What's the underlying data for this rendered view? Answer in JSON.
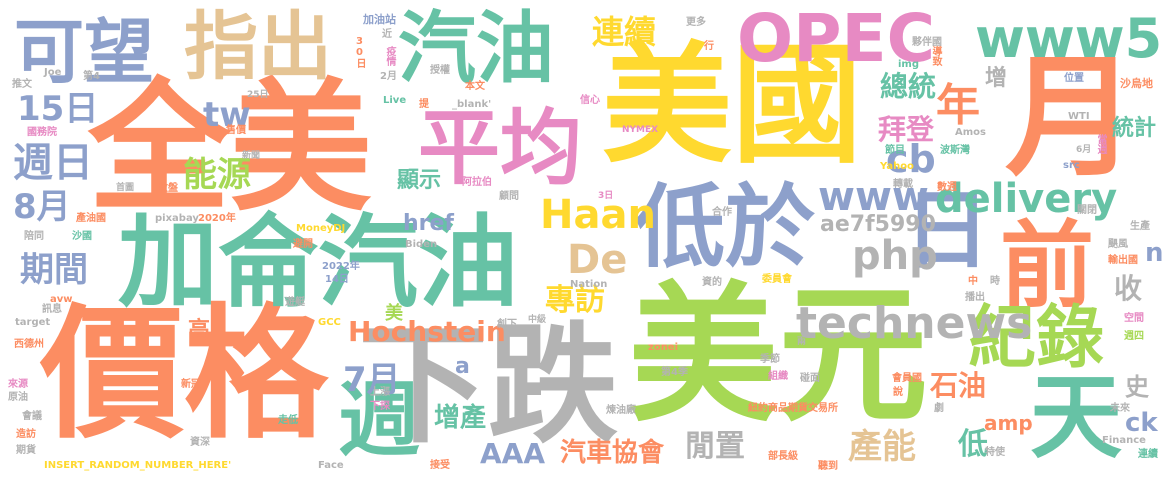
{
  "palette": {
    "teal": "#66c2a5",
    "orange": "#fc8d62",
    "blue": "#8da0cb",
    "pink": "#e78ac3",
    "green": "#a6d854",
    "yellow": "#ffd92f",
    "tan": "#e5c494",
    "gray": "#b3b3b3"
  },
  "words": [
    {
      "text": "美元",
      "color": "green"
    },
    {
      "text": "價格",
      "color": "orange"
    },
    {
      "text": "美國",
      "color": "yellow"
    },
    {
      "text": "全美",
      "color": "orange"
    },
    {
      "text": "加侖汽油",
      "color": "teal"
    },
    {
      "text": "下跌",
      "color": "gray"
    },
    {
      "text": "月",
      "color": "orange"
    },
    {
      "text": "平均",
      "color": "pink"
    },
    {
      "text": "低於",
      "color": "blue"
    },
    {
      "text": "可望",
      "color": "blue"
    },
    {
      "text": "指出",
      "color": "tan"
    },
    {
      "text": "汽油",
      "color": "teal"
    },
    {
      "text": "OPEC",
      "color": "pink"
    },
    {
      "text": "www5",
      "color": "teal"
    },
    {
      "text": "日",
      "color": "blue"
    },
    {
      "text": "前",
      "color": "orange"
    },
    {
      "text": "天",
      "color": "teal"
    },
    {
      "text": "紀錄",
      "color": "green"
    },
    {
      "text": "週",
      "color": "teal"
    },
    {
      "text": "technews",
      "color": "gray"
    },
    {
      "text": "Haan",
      "color": "yellow"
    },
    {
      "text": "www",
      "color": "blue"
    },
    {
      "text": "delivery",
      "color": "teal"
    },
    {
      "text": "php",
      "color": "gray"
    },
    {
      "text": "De",
      "color": "tan"
    },
    {
      "text": "cb",
      "color": "blue"
    },
    {
      "text": "年",
      "color": "orange"
    },
    {
      "text": "15日",
      "color": "blue"
    },
    {
      "text": "週日",
      "color": "blue"
    },
    {
      "text": "8月",
      "color": "blue"
    },
    {
      "text": "tw",
      "color": "blue"
    },
    {
      "text": "能源",
      "color": "green"
    },
    {
      "text": "期間",
      "color": "blue"
    },
    {
      "text": "連續",
      "color": "yellow"
    },
    {
      "text": "總統",
      "color": "teal"
    },
    {
      "text": "拜登",
      "color": "pink"
    },
    {
      "text": "Hochstein",
      "color": "orange"
    },
    {
      "text": "專訪",
      "color": "yellow"
    },
    {
      "text": "7月",
      "color": "blue"
    },
    {
      "text": "石油",
      "color": "orange"
    },
    {
      "text": "ae7f5990",
      "color": "gray"
    },
    {
      "text": "統計",
      "color": "teal"
    },
    {
      "text": "增",
      "color": "gray"
    },
    {
      "text": "顯示",
      "color": "teal"
    },
    {
      "text": "href",
      "color": "blue"
    },
    {
      "text": "收",
      "color": "gray"
    },
    {
      "text": "n",
      "color": "blue"
    },
    {
      "text": "AAA",
      "color": "blue"
    },
    {
      "text": "汽車協會",
      "color": "orange"
    },
    {
      "text": "閒置",
      "color": "gray"
    },
    {
      "text": "產能",
      "color": "tan"
    },
    {
      "text": "低",
      "color": "teal"
    },
    {
      "text": "增產",
      "color": "teal"
    },
    {
      "text": "amp",
      "color": "orange"
    },
    {
      "text": "ck",
      "color": "blue"
    },
    {
      "text": "史",
      "color": "gray"
    },
    {
      "text": "高",
      "color": "orange"
    },
    {
      "text": "a",
      "color": "blue"
    },
    {
      "text": "美",
      "color": "green"
    },
    {
      "text": "加油站",
      "color": "blue"
    },
    {
      "text": "近",
      "color": "gray"
    },
    {
      "text": "30日",
      "color": "orange"
    },
    {
      "text": "疫情",
      "color": "pink"
    },
    {
      "text": "2月",
      "color": "gray"
    },
    {
      "text": "Live",
      "color": "teal"
    },
    {
      "text": "授權",
      "color": "gray"
    },
    {
      "text": "本文",
      "color": "orange"
    },
    {
      "text": "提",
      "color": "orange"
    },
    {
      "text": "_blank'",
      "color": "gray"
    },
    {
      "text": "信心",
      "color": "pink"
    },
    {
      "text": "NYMEX",
      "color": "pink"
    },
    {
      "text": "更多",
      "color": "gray"
    },
    {
      "text": "行",
      "color": "orange"
    },
    {
      "text": "夥伴國",
      "color": "gray"
    },
    {
      "text": "導致",
      "color": "orange"
    },
    {
      "text": "img",
      "color": "teal"
    },
    {
      "text": "位置",
      "color": "blue"
    },
    {
      "text": "沙烏地",
      "color": "orange"
    },
    {
      "text": "WTI",
      "color": "gray"
    },
    {
      "text": "當週",
      "color": "pink"
    },
    {
      "text": "Joe",
      "color": "gray"
    },
    {
      "text": "推文",
      "color": "gray"
    },
    {
      "text": "第4",
      "color": "gray"
    },
    {
      "text": "國務院",
      "color": "pink"
    },
    {
      "text": "25日",
      "color": "gray"
    },
    {
      "text": "售價",
      "color": "orange"
    },
    {
      "text": "新聞",
      "color": "gray"
    },
    {
      "text": "收盤",
      "color": "orange"
    },
    {
      "text": "首圖",
      "color": "gray"
    },
    {
      "text": "產油國",
      "color": "orange"
    },
    {
      "text": "陪同",
      "color": "gray"
    },
    {
      "text": "沙國",
      "color": "teal"
    },
    {
      "text": "pixabay",
      "color": "gray"
    },
    {
      "text": "2020年",
      "color": "orange"
    },
    {
      "text": "MoneyDJ",
      "color": "yellow"
    },
    {
      "text": "阿拉伯",
      "color": "pink"
    },
    {
      "text": "Biden",
      "color": "gray"
    },
    {
      "text": "顧問",
      "color": "gray"
    },
    {
      "text": "3日",
      "color": "pink"
    },
    {
      "text": "合作",
      "color": "gray"
    },
    {
      "text": "Yahoo",
      "color": "yellow"
    },
    {
      "text": "轉載",
      "color": "gray"
    },
    {
      "text": "數週",
      "color": "orange"
    },
    {
      "text": "節目",
      "color": "teal"
    },
    {
      "text": "Amos",
      "color": "gray"
    },
    {
      "text": "波斯灣",
      "color": "teal"
    },
    {
      "text": "6月",
      "color": "gray"
    },
    {
      "text": "src",
      "color": "blue"
    },
    {
      "text": "關閉",
      "color": "gray"
    },
    {
      "text": "生產",
      "color": "gray"
    },
    {
      "text": "颶風",
      "color": "gray"
    },
    {
      "text": "輸出國",
      "color": "orange"
    },
    {
      "text": "避開",
      "color": "orange"
    },
    {
      "text": "2022年",
      "color": "blue"
    },
    {
      "text": "14日",
      "color": "blue"
    },
    {
      "text": "avw",
      "color": "orange"
    },
    {
      "text": "訊息",
      "color": "gray"
    },
    {
      "text": "Nation",
      "color": "gray"
    },
    {
      "text": "資的",
      "color": "gray"
    },
    {
      "text": "委員會",
      "color": "yellow"
    },
    {
      "text": "中",
      "color": "orange"
    },
    {
      "text": "時",
      "color": "gray"
    },
    {
      "text": "播出",
      "color": "gray"
    },
    {
      "text": "target",
      "color": "gray"
    },
    {
      "text": "遊艇",
      "color": "gray"
    },
    {
      "text": "GCC",
      "color": "yellow"
    },
    {
      "text": "創下",
      "color": "gray"
    },
    {
      "text": "中級",
      "color": "gray"
    },
    {
      "text": "空間",
      "color": "pink"
    },
    {
      "text": "週四",
      "color": "green"
    },
    {
      "text": "西德州",
      "color": "orange"
    },
    {
      "text": "zonei",
      "color": "orange"
    },
    {
      "text": "兩",
      "color": "gray"
    },
    {
      "text": "季節",
      "color": "gray"
    },
    {
      "text": "碰面",
      "color": "gray"
    },
    {
      "text": "會員國",
      "color": "orange"
    },
    {
      "text": "來源",
      "color": "pink"
    },
    {
      "text": "新冠",
      "color": "orange"
    },
    {
      "text": "第4季",
      "color": "gray"
    },
    {
      "text": "組織",
      "color": "pink"
    },
    {
      "text": "說",
      "color": "orange"
    },
    {
      "text": "原油",
      "color": "gray"
    },
    {
      "text": "上漲",
      "color": "gray"
    },
    {
      "text": "下探",
      "color": "pink"
    },
    {
      "text": "煉油廠",
      "color": "gray"
    },
    {
      "text": "紐約商品期貨交易所",
      "color": "orange"
    },
    {
      "text": "劇",
      "color": "gray"
    },
    {
      "text": "未來",
      "color": "gray"
    },
    {
      "text": "會議",
      "color": "gray"
    },
    {
      "text": "造訪",
      "color": "orange"
    },
    {
      "text": "走低",
      "color": "teal"
    },
    {
      "text": "資深",
      "color": "gray"
    },
    {
      "text": "期貨",
      "color": "gray"
    },
    {
      "text": "INSERT_RANDOM_NUMBER_HERE'",
      "color": "yellow"
    },
    {
      "text": "Face",
      "color": "gray"
    },
    {
      "text": "接受",
      "color": "orange"
    },
    {
      "text": "部長級",
      "color": "orange"
    },
    {
      "text": "聽到",
      "color": "orange"
    },
    {
      "text": "特使",
      "color": "gray"
    },
    {
      "text": "Finance",
      "color": "gray"
    },
    {
      "text": "連續",
      "color": "teal"
    }
  ]
}
